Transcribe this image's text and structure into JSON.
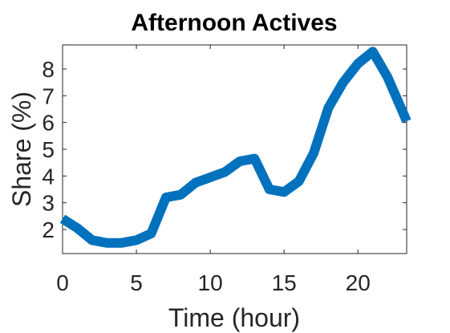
{
  "chart_data": {
    "type": "line",
    "title": "Afternoon Actives",
    "xlabel": "Time (hour)",
    "ylabel": "Share (%)",
    "xlim": [
      0,
      23.3
    ],
    "ylim": [
      1.1,
      8.9
    ],
    "xticks": [
      0,
      5,
      10,
      15,
      20
    ],
    "yticks": [
      2,
      3,
      4,
      5,
      6,
      7,
      8
    ],
    "grid": false,
    "legend": "none",
    "series": [
      {
        "color": "#0072BD",
        "x": [
          0,
          1,
          2,
          3,
          4,
          5,
          6,
          7,
          8,
          9,
          10,
          11,
          12,
          13,
          14,
          15,
          16,
          17,
          18,
          19,
          20,
          21,
          22,
          23.3
        ],
        "y": [
          2.4,
          2.05,
          1.6,
          1.5,
          1.5,
          1.6,
          1.85,
          3.2,
          3.3,
          3.75,
          3.95,
          4.15,
          4.55,
          4.65,
          3.5,
          3.4,
          3.8,
          4.85,
          6.55,
          7.5,
          8.2,
          8.65,
          7.7,
          6.05
        ]
      }
    ]
  }
}
